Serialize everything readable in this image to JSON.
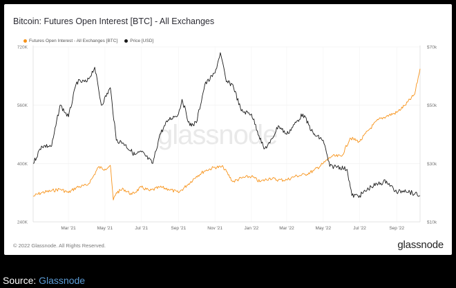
{
  "chart_data": {
    "type": "line",
    "title": "Bitcoin: Futures Open Interest [BTC] - All Exchanges",
    "x_tick_labels": [
      "Mar '21",
      "May '21",
      "Jul '21",
      "Sep '21",
      "Nov '21",
      "Jan '22",
      "Mar '22",
      "May '22",
      "Jul '22",
      "Sep '22"
    ],
    "y_left": {
      "ticks": [
        "240K",
        "400K",
        "560K",
        "720K"
      ],
      "lim": [
        240000,
        720000
      ]
    },
    "y_right": {
      "ticks": [
        "$10k",
        "$30k",
        "$50k",
        "$70k"
      ],
      "lim": [
        10000,
        70000
      ]
    },
    "grid": true,
    "legend_position": "top-left",
    "series": [
      {
        "name": "Futures Open Interest - All Exchanges [BTC]",
        "axis": "left",
        "color": "#f7931a",
        "x": [
          "2021-01-01",
          "2021-01-15",
          "2021-02-01",
          "2021-02-15",
          "2021-03-01",
          "2021-03-15",
          "2021-04-01",
          "2021-04-10",
          "2021-04-20",
          "2021-05-01",
          "2021-05-10",
          "2021-05-15",
          "2021-05-20",
          "2021-06-01",
          "2021-06-15",
          "2021-07-01",
          "2021-07-15",
          "2021-08-01",
          "2021-08-15",
          "2021-09-01",
          "2021-09-15",
          "2021-10-01",
          "2021-10-15",
          "2021-11-01",
          "2021-11-15",
          "2021-12-01",
          "2021-12-15",
          "2022-01-01",
          "2022-01-15",
          "2022-02-01",
          "2022-02-15",
          "2022-03-01",
          "2022-03-15",
          "2022-04-01",
          "2022-04-15",
          "2022-05-01",
          "2022-05-15",
          "2022-06-01",
          "2022-06-15",
          "2022-07-01",
          "2022-07-15",
          "2022-08-01",
          "2022-08-15",
          "2022-09-01",
          "2022-09-15",
          "2022-10-01",
          "2022-10-10"
        ],
        "values": [
          310000,
          320000,
          325000,
          330000,
          320000,
          335000,
          340000,
          360000,
          390000,
          385000,
          395000,
          300000,
          320000,
          330000,
          315000,
          335000,
          325000,
          335000,
          330000,
          320000,
          340000,
          365000,
          380000,
          390000,
          390000,
          350000,
          360000,
          365000,
          350000,
          360000,
          355000,
          355000,
          365000,
          370000,
          380000,
          400000,
          420000,
          420000,
          470000,
          460000,
          490000,
          520000,
          530000,
          540000,
          560000,
          590000,
          660000
        ]
      },
      {
        "name": "Price [USD]",
        "axis": "right",
        "color": "#1a1a1a",
        "x": [
          "2021-01-01",
          "2021-01-15",
          "2021-02-01",
          "2021-02-15",
          "2021-03-01",
          "2021-03-15",
          "2021-04-01",
          "2021-04-14",
          "2021-04-25",
          "2021-05-10",
          "2021-05-20",
          "2021-06-01",
          "2021-06-20",
          "2021-07-01",
          "2021-07-20",
          "2021-08-01",
          "2021-08-15",
          "2021-09-01",
          "2021-09-07",
          "2021-09-20",
          "2021-10-01",
          "2021-10-15",
          "2021-11-01",
          "2021-11-10",
          "2021-11-20",
          "2021-12-01",
          "2021-12-15",
          "2022-01-01",
          "2022-01-22",
          "2022-02-01",
          "2022-02-15",
          "2022-03-01",
          "2022-03-28",
          "2022-04-15",
          "2022-05-01",
          "2022-05-12",
          "2022-05-25",
          "2022-06-10",
          "2022-06-18",
          "2022-07-01",
          "2022-07-20",
          "2022-08-01",
          "2022-08-15",
          "2022-09-01",
          "2022-09-15",
          "2022-10-01",
          "2022-10-10"
        ],
        "values": [
          30000,
          36000,
          36000,
          50000,
          46000,
          58000,
          58000,
          63000,
          50000,
          56000,
          38000,
          37000,
          33000,
          34000,
          30000,
          40000,
          45000,
          47000,
          52000,
          43000,
          44000,
          57000,
          61000,
          68000,
          58000,
          57000,
          48000,
          47000,
          35000,
          37000,
          43000,
          40000,
          47000,
          40000,
          38000,
          29000,
          29000,
          28000,
          19000,
          19000,
          22000,
          23000,
          24000,
          20000,
          21000,
          19500,
          19000
        ]
      }
    ]
  },
  "watermark": "glassnode",
  "footer": {
    "copyright": "© 2022 Glassnode. All Rights Reserved.",
    "brand": "glassnode"
  },
  "source": {
    "label": "Source: ",
    "link": "Glassnode"
  }
}
